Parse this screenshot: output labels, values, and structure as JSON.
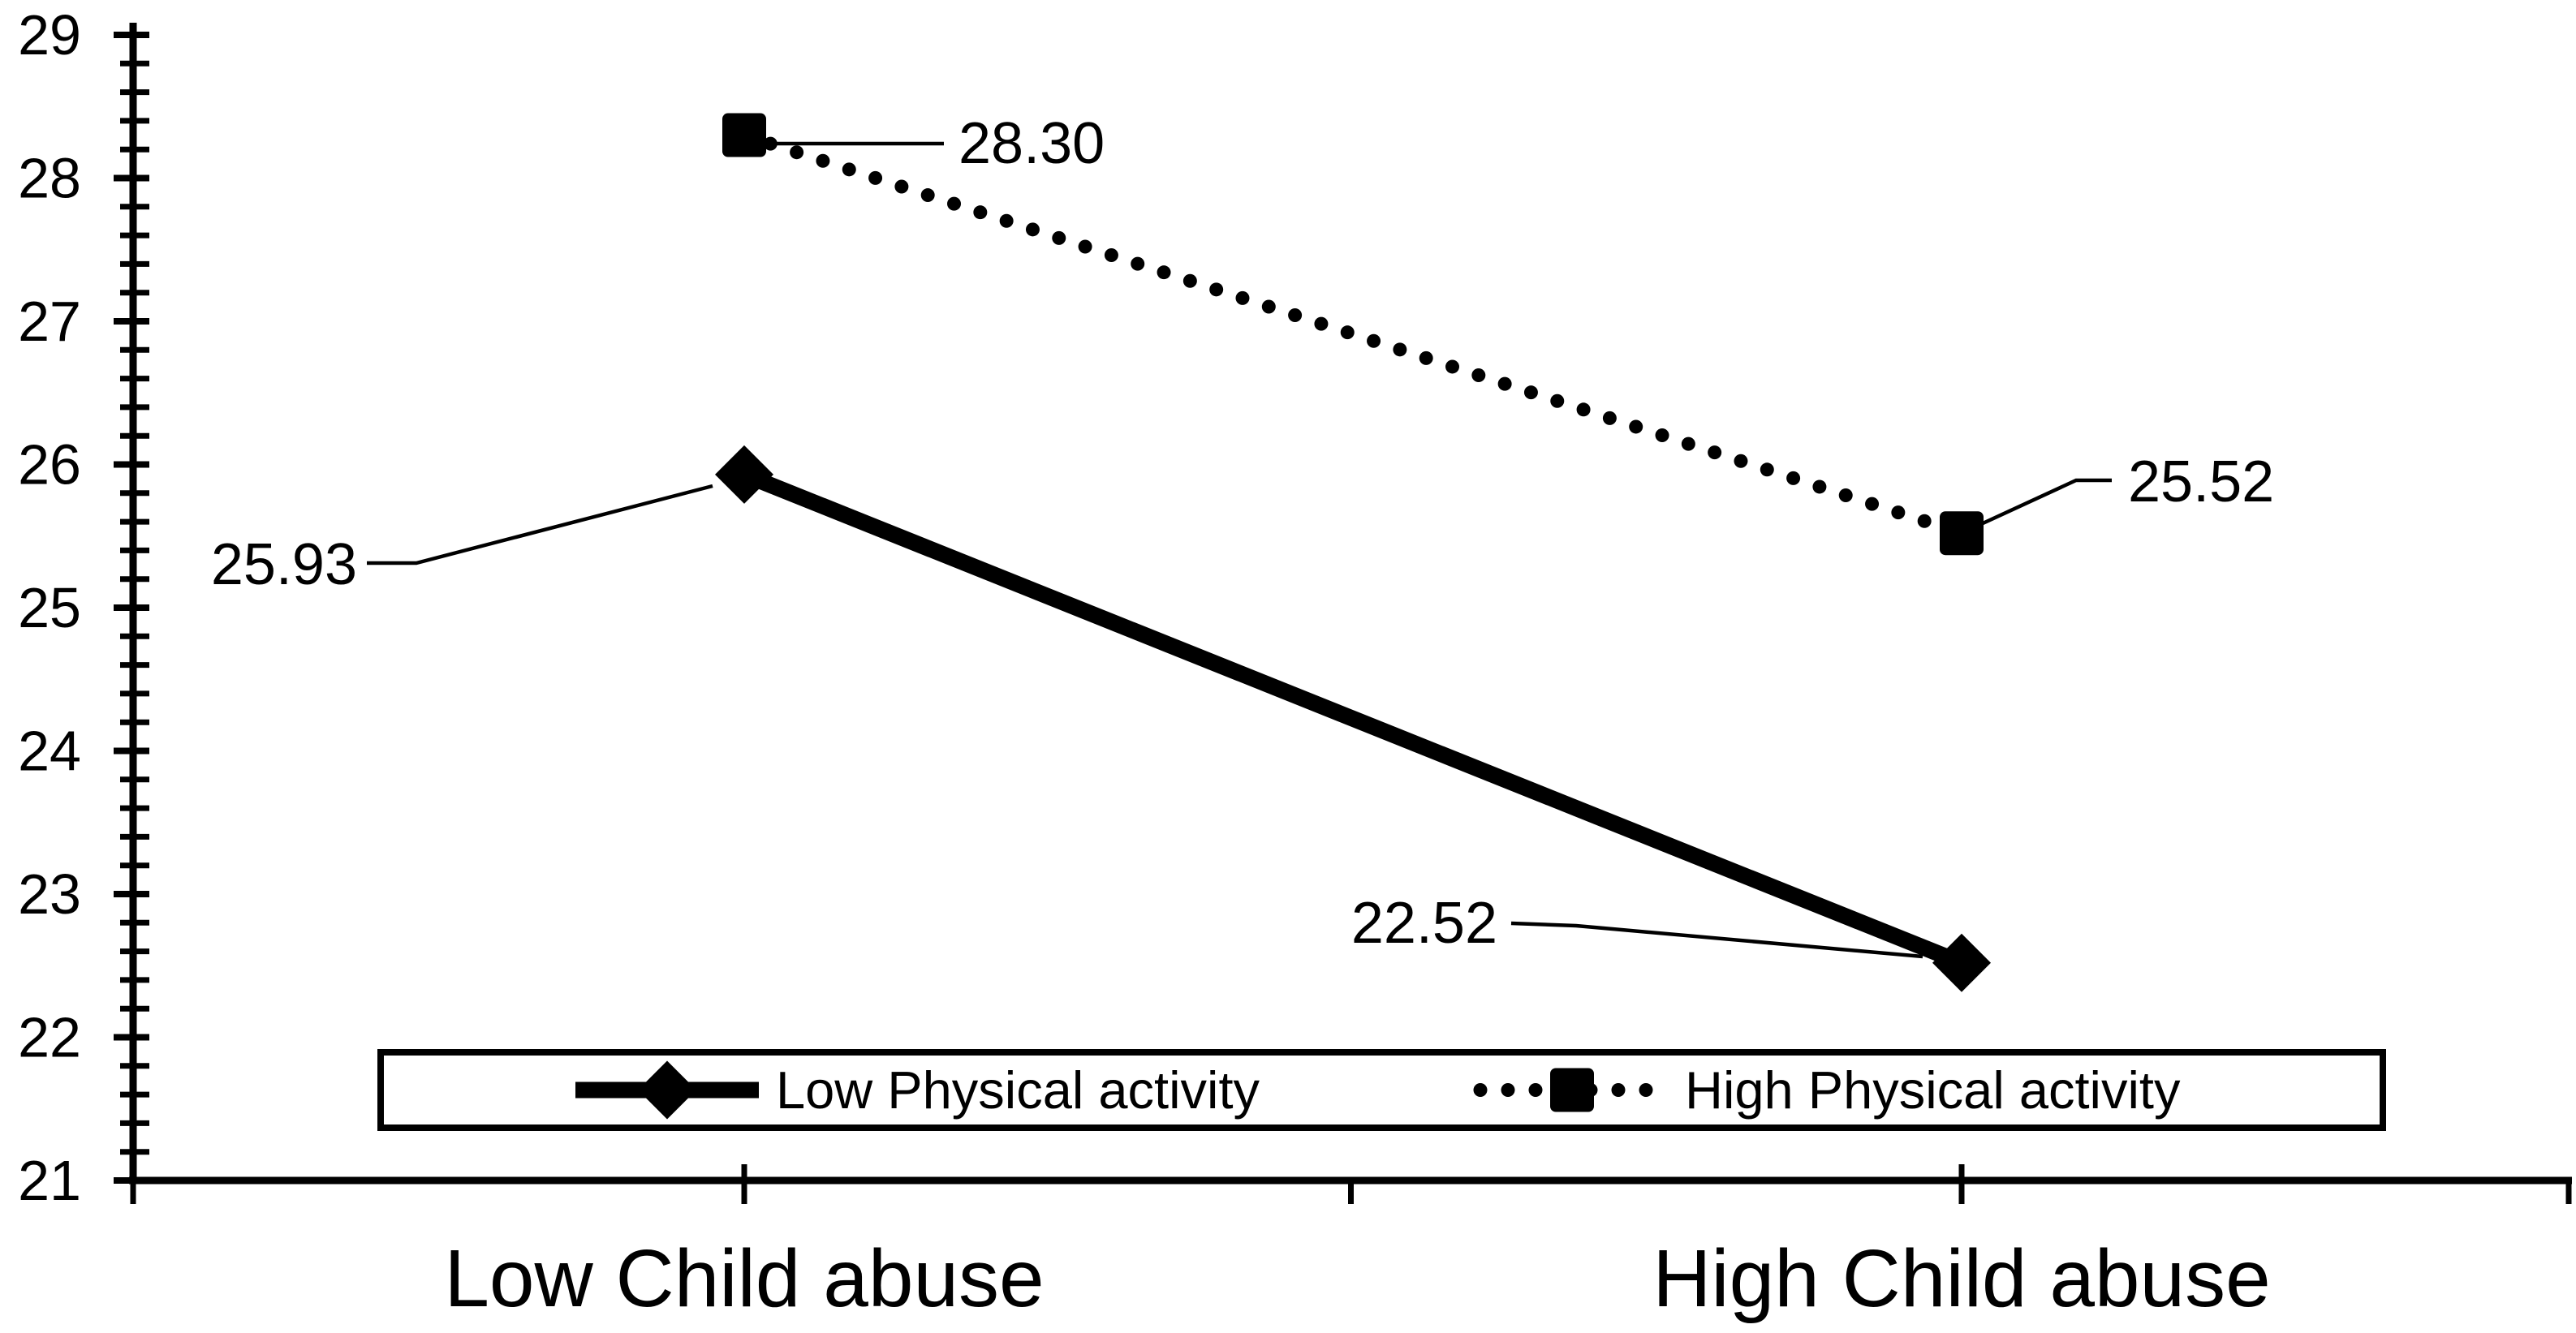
{
  "chart_data": {
    "type": "line",
    "categories": [
      "Low Child abuse",
      "High Child abuse"
    ],
    "series": [
      {
        "name": "Low Physical activity",
        "marker": "diamond",
        "line_style": "solid",
        "values": [
          25.93,
          22.52
        ],
        "data_labels": [
          "25.93",
          "22.52"
        ]
      },
      {
        "name": "High Physical activity",
        "marker": "square",
        "line_style": "dotted",
        "values": [
          28.3,
          25.52
        ],
        "data_labels": [
          "28.30",
          "25.52"
        ]
      }
    ],
    "y_axis": {
      "min": 21,
      "max": 29,
      "major_step": 1,
      "minor_step": 0.2,
      "tick_labels": [
        "21",
        "22",
        "23",
        "24",
        "25",
        "26",
        "27",
        "28",
        "29"
      ]
    },
    "x_axis": {
      "tick_labels": [
        "Low Child abuse",
        "High Child abuse"
      ]
    },
    "legend": {
      "position": "bottom-inside",
      "border": true,
      "entries": [
        "Low Physical activity",
        "High Physical activity"
      ]
    },
    "colors": {
      "foreground": "#000000",
      "background": "#ffffff"
    }
  }
}
